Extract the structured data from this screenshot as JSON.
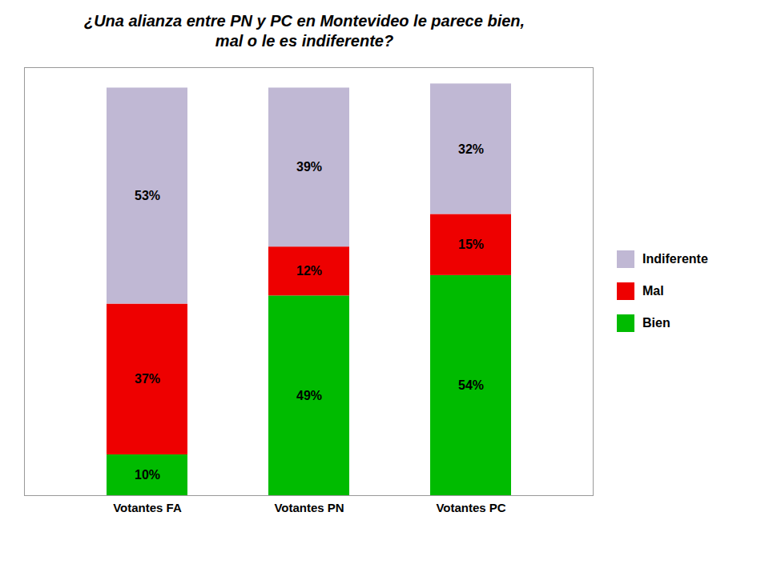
{
  "chart_data": {
    "type": "bar",
    "title": "¿Una alianza entre PN y PC en Montevideo le parece bien,\nmal o le es indiferente?",
    "categories": [
      "Votantes FA",
      "Votantes PN",
      "Votantes PC"
    ],
    "series": [
      {
        "name": "Bien",
        "color": "#00bb00",
        "values": [
          10,
          49,
          54
        ],
        "value_labels": [
          "10%",
          "49%",
          "54%"
        ]
      },
      {
        "name": "Mal",
        "color": "#ee0000",
        "values": [
          37,
          12,
          15
        ],
        "value_labels": [
          "37%",
          "12%",
          "15%"
        ]
      },
      {
        "name": "Indiferente",
        "color": "#c0b8d4",
        "values": [
          53,
          39,
          32
        ],
        "value_labels": [
          "53%",
          "39%",
          "32%"
        ]
      }
    ],
    "stacked": true,
    "data_labels": true,
    "ylim": [
      0,
      105
    ],
    "tick_labels": "x",
    "grid": false,
    "legend": "right"
  }
}
